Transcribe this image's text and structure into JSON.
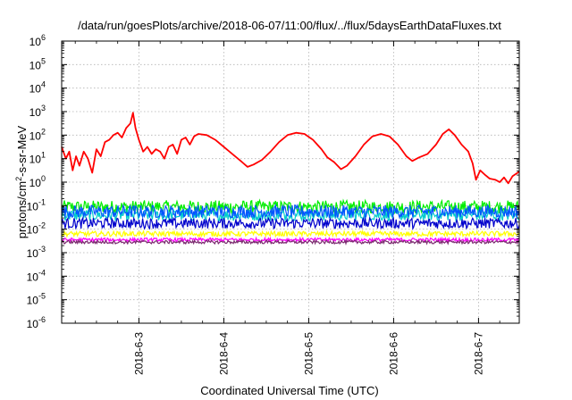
{
  "chart_data": {
    "type": "line",
    "title": "/data/run/goesPlots/archive/2018-06-07/11:00/flux/../flux/5daysEarthDataFluxes.txt",
    "xlabel": "Coordinated Universal Time (UTC)",
    "ylabel_parts": [
      "protons/cm",
      "2",
      "-s-sr-MeV"
    ],
    "y_scale": "log",
    "ylim_exp": [
      -6,
      6
    ],
    "y_ticks": [
      {
        "exp": -6,
        "label": "10",
        "sup": "-6"
      },
      {
        "exp": -5,
        "label": "10",
        "sup": "-5"
      },
      {
        "exp": -4,
        "label": "10",
        "sup": "-4"
      },
      {
        "exp": -3,
        "label": "10",
        "sup": "-3"
      },
      {
        "exp": -2,
        "label": "10",
        "sup": "-2"
      },
      {
        "exp": -1,
        "label": "10",
        "sup": "-1"
      },
      {
        "exp": 0,
        "label": "10",
        "sup": "0"
      },
      {
        "exp": 1,
        "label": "10",
        "sup": "1"
      },
      {
        "exp": 2,
        "label": "10",
        "sup": "2"
      },
      {
        "exp": 3,
        "label": "10",
        "sup": "3"
      },
      {
        "exp": 4,
        "label": "10",
        "sup": "4"
      },
      {
        "exp": 5,
        "label": "10",
        "sup": "5"
      },
      {
        "exp": 6,
        "label": "10",
        "sup": "6"
      }
    ],
    "x_range_days": [
      2.09,
      7.48
    ],
    "x_ticks": [
      {
        "day": 3,
        "label": "2018-6-3"
      },
      {
        "day": 4,
        "label": "2018-6-4"
      },
      {
        "day": 5,
        "label": "2018-6-5"
      },
      {
        "day": 6,
        "label": "2018-6-6"
      },
      {
        "day": 7,
        "label": "2018-6-7"
      }
    ],
    "grid": true,
    "series": [
      {
        "color": "#ff0000",
        "points": [
          [
            2.09,
            1.5
          ],
          [
            2.14,
            1.0
          ],
          [
            2.18,
            1.3
          ],
          [
            2.22,
            0.5
          ],
          [
            2.26,
            1.1
          ],
          [
            2.3,
            0.7
          ],
          [
            2.35,
            1.3
          ],
          [
            2.4,
            1.0
          ],
          [
            2.45,
            0.4
          ],
          [
            2.5,
            1.4
          ],
          [
            2.55,
            1.1
          ],
          [
            2.6,
            1.7
          ],
          [
            2.65,
            1.8
          ],
          [
            2.7,
            2.0
          ],
          [
            2.75,
            2.1
          ],
          [
            2.8,
            1.9
          ],
          [
            2.85,
            2.3
          ],
          [
            2.9,
            2.5
          ],
          [
            2.93,
            2.95
          ],
          [
            2.96,
            2.3
          ],
          [
            3.0,
            1.8
          ],
          [
            3.05,
            1.3
          ],
          [
            3.1,
            1.5
          ],
          [
            3.15,
            1.2
          ],
          [
            3.2,
            1.4
          ],
          [
            3.25,
            1.3
          ],
          [
            3.3,
            1.0
          ],
          [
            3.35,
            1.5
          ],
          [
            3.4,
            1.6
          ],
          [
            3.45,
            1.2
          ],
          [
            3.5,
            1.8
          ],
          [
            3.55,
            1.9
          ],
          [
            3.6,
            1.6
          ],
          [
            3.65,
            1.95
          ],
          [
            3.7,
            2.05
          ],
          [
            3.8,
            2.0
          ],
          [
            3.9,
            1.8
          ],
          [
            4.0,
            1.5
          ],
          [
            4.1,
            1.2
          ],
          [
            4.2,
            0.9
          ],
          [
            4.28,
            0.65
          ],
          [
            4.35,
            0.75
          ],
          [
            4.45,
            0.95
          ],
          [
            4.55,
            1.3
          ],
          [
            4.65,
            1.7
          ],
          [
            4.75,
            2.0
          ],
          [
            4.85,
            2.1
          ],
          [
            4.95,
            2.05
          ],
          [
            5.05,
            1.8
          ],
          [
            5.15,
            1.4
          ],
          [
            5.22,
            1.05
          ],
          [
            5.3,
            0.85
          ],
          [
            5.38,
            0.55
          ],
          [
            5.45,
            0.7
          ],
          [
            5.55,
            1.1
          ],
          [
            5.65,
            1.6
          ],
          [
            5.75,
            1.95
          ],
          [
            5.85,
            2.05
          ],
          [
            5.95,
            1.95
          ],
          [
            6.05,
            1.6
          ],
          [
            6.15,
            1.1
          ],
          [
            6.22,
            0.9
          ],
          [
            6.3,
            1.05
          ],
          [
            6.4,
            1.2
          ],
          [
            6.5,
            1.6
          ],
          [
            6.58,
            2.05
          ],
          [
            6.65,
            2.25
          ],
          [
            6.72,
            2.0
          ],
          [
            6.8,
            1.6
          ],
          [
            6.88,
            1.3
          ],
          [
            6.93,
            0.8
          ],
          [
            6.97,
            0.1
          ],
          [
            7.02,
            0.5
          ],
          [
            7.08,
            0.3
          ],
          [
            7.13,
            0.15
          ],
          [
            7.2,
            0.1
          ],
          [
            7.25,
            0.0
          ],
          [
            7.3,
            0.2
          ],
          [
            7.35,
            -0.05
          ],
          [
            7.4,
            0.25
          ],
          [
            7.48,
            0.45
          ]
        ]
      },
      {
        "color": "#00ee00",
        "base": -1.05,
        "amp": 0.55
      },
      {
        "color": "#00cccc",
        "base": -1.4,
        "amp": 0.5
      },
      {
        "color": "#0055ff",
        "base": -1.25,
        "amp": 0.55
      },
      {
        "color": "#0000cc",
        "base": -1.75,
        "amp": 0.45
      },
      {
        "color": "#ffff00",
        "base": -2.2,
        "amp": 0.22
      },
      {
        "color": "#ff00ff",
        "base": -2.45,
        "amp": 0.15
      },
      {
        "color": "#7a2a6e",
        "base": -2.55,
        "amp": 0.14
      }
    ]
  }
}
